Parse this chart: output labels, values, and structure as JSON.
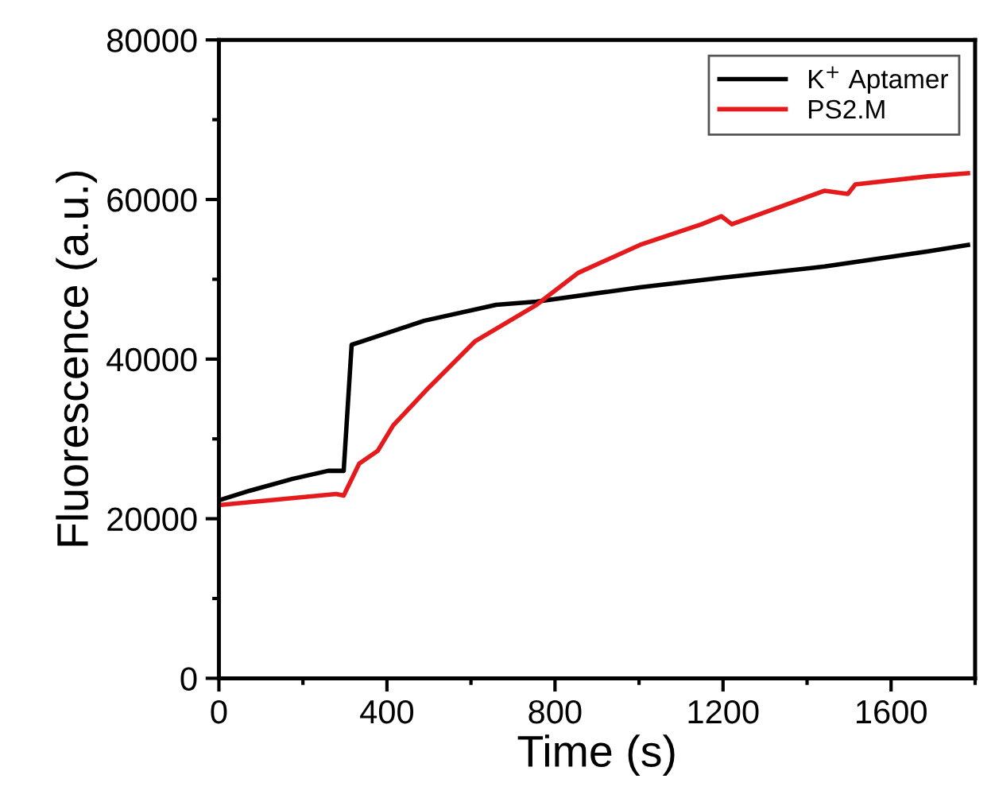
{
  "chart_data": {
    "type": "line",
    "xlabel": "Time (s)",
    "ylabel": "Fluorescence (a.u.)",
    "xlim": [
      0,
      1800
    ],
    "ylim": [
      0,
      80000
    ],
    "xticks": [
      0,
      400,
      800,
      1200,
      1600
    ],
    "yticks": [
      0,
      20000,
      40000,
      60000,
      80000
    ],
    "grid": false,
    "legend": "top right",
    "marker": "none",
    "line_style": "solid",
    "series": [
      {
        "name": "K$^{+}$ Aptamer",
        "color": "#000000",
        "x": [
          0,
          73,
          176,
          260,
          297,
          316,
          340,
          488,
          660,
          756,
          1002,
          1196,
          1442,
          1688,
          1783
        ],
        "values": [
          22300,
          23500,
          25000,
          26000,
          26000,
          41800,
          42200,
          44800,
          46800,
          47200,
          49000,
          50200,
          51600,
          53500,
          54300
        ]
      },
      {
        "name": "PS2.M",
        "color": "#e41a1c",
        "x": [
          0,
          279,
          297,
          334,
          378,
          415,
          499,
          609,
          756,
          855,
          1002,
          1149,
          1196,
          1221,
          1442,
          1497,
          1515,
          1688,
          1783
        ],
        "values": [
          21700,
          23100,
          22900,
          26900,
          28500,
          31700,
          36400,
          42200,
          46800,
          50800,
          54300,
          56900,
          57900,
          56900,
          61100,
          60700,
          61900,
          62900,
          63300
        ]
      }
    ]
  }
}
